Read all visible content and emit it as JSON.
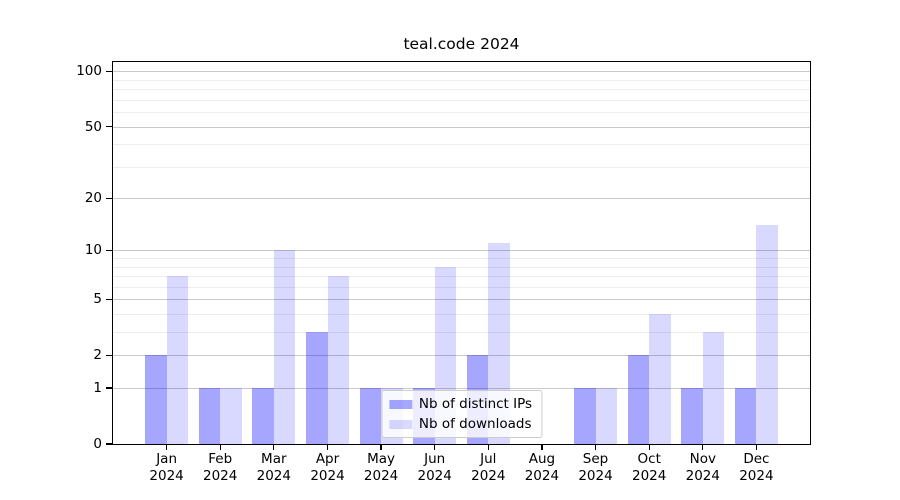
{
  "chart_data": {
    "type": "bar",
    "title": "teal.code 2024",
    "categories": [
      "Jan",
      "Feb",
      "Mar",
      "Apr",
      "May",
      "Jun",
      "Jul",
      "Aug",
      "Sep",
      "Oct",
      "Nov",
      "Dec"
    ],
    "x_year_label": "2024",
    "series": [
      {
        "name": "Nb of distinct IPs",
        "color": "#0000FF59",
        "values": [
          2,
          1,
          1,
          3,
          1,
          1,
          2,
          0,
          1,
          2,
          1,
          1
        ]
      },
      {
        "name": "Nb of downloads",
        "color": "#0000FF26",
        "values": [
          7,
          1,
          10,
          7,
          1,
          8,
          11,
          0,
          1,
          4,
          3,
          14
        ]
      }
    ],
    "xlabel": "",
    "ylabel": "",
    "yscale": "log1p",
    "ylim": [
      0,
      112
    ],
    "yticks": [
      100,
      50,
      20,
      10,
      5,
      2,
      1,
      0
    ],
    "y_minor_gridlines": [
      3,
      4,
      6,
      7,
      8,
      9,
      30,
      40,
      60,
      70,
      80,
      90
    ],
    "grid": true,
    "legend_position": "lower center",
    "colors": {
      "bar_distinct_ips": "#0000FF59",
      "bar_downloads": "#0000FF26",
      "gridline_major": "#c9c9c9",
      "gridline_minor": "#ededed",
      "axis": "#000000",
      "legend_border": "#cccccc",
      "background": "#ffffff"
    }
  }
}
